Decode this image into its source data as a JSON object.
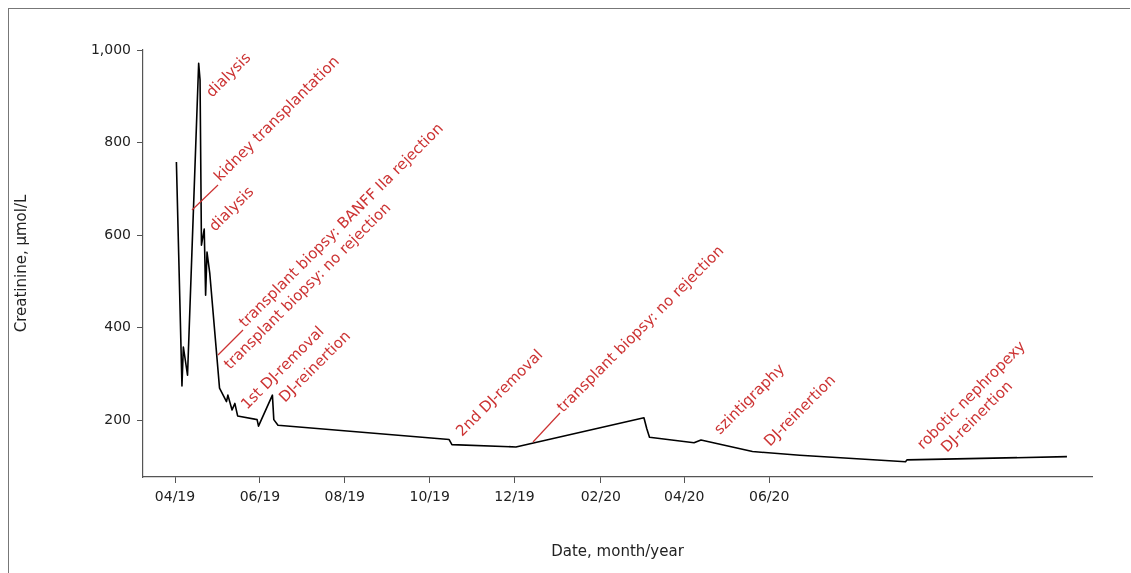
{
  "chart_data": {
    "type": "line",
    "xlabel": "Date, month/year",
    "ylabel": "Creatinine, μmol/L",
    "x": [
      "2019-04-02",
      "2019-04-06",
      "2019-04-07",
      "2019-04-10",
      "2019-04-18",
      "2019-04-19",
      "2019-04-20",
      "2019-04-22",
      "2019-04-23",
      "2019-04-24",
      "2019-04-26",
      "2019-05-03",
      "2019-05-08",
      "2019-05-09",
      "2019-05-12",
      "2019-05-14",
      "2019-05-16",
      "2019-05-30",
      "2019-05-31",
      "2019-06-10",
      "2019-06-11",
      "2019-06-14",
      "2019-10-15",
      "2019-10-17",
      "2019-12-02",
      "2020-03-03",
      "2020-03-05",
      "2020-03-07",
      "2020-04-08",
      "2020-04-13",
      "2020-05-20",
      "2020-06-23",
      "2020-09-07",
      "2020-09-08",
      "2021-01-01"
    ],
    "series": [
      {
        "color": "#000000",
        "values": [
          758,
          274,
          358,
          297,
          971,
          935,
          578,
          613,
          470,
          563,
          517,
          269,
          240,
          254,
          222,
          236,
          209,
          201,
          187,
          254,
          201,
          189,
          158,
          147,
          142,
          205,
          182,
          163,
          151,
          157,
          132,
          124,
          110,
          114,
          121
        ]
      }
    ],
    "xlim": [
      "2019-03-09",
      "2021-01-19"
    ],
    "ylim": [
      77,
      1000
    ],
    "xticks": [
      {
        "value": "2019-04-01",
        "label": "04/19"
      },
      {
        "value": "2019-06-01",
        "label": "06/19"
      },
      {
        "value": "2019-08-01",
        "label": "08/19"
      },
      {
        "value": "2019-10-01",
        "label": "10/19"
      },
      {
        "value": "2019-12-01",
        "label": "12/19"
      },
      {
        "value": "2020-02-01",
        "label": "02/20"
      },
      {
        "value": "2020-04-01",
        "label": "04/20"
      },
      {
        "value": "2020-06-01",
        "label": "06/20"
      }
    ],
    "yticks": [
      200,
      400,
      600,
      800,
      {
        "value": 1000,
        "label": "1,000"
      }
    ],
    "grid": false,
    "legend": false,
    "marker": "none",
    "line_style": "solid",
    "annotations": [
      "dialysis",
      "kidney transplantation",
      "dialysis",
      "transplant biopsy: BANFF IIa rejection",
      "transplant biopsy: no rejection",
      "1st DJ-removal",
      "DJ-reinertion",
      "2nd DJ-removal",
      "transplant biopsy: no rejection",
      "szintigraphy",
      "DJ-reinertion",
      "robotic nephropexy",
      "DJ-reinertion"
    ]
  }
}
